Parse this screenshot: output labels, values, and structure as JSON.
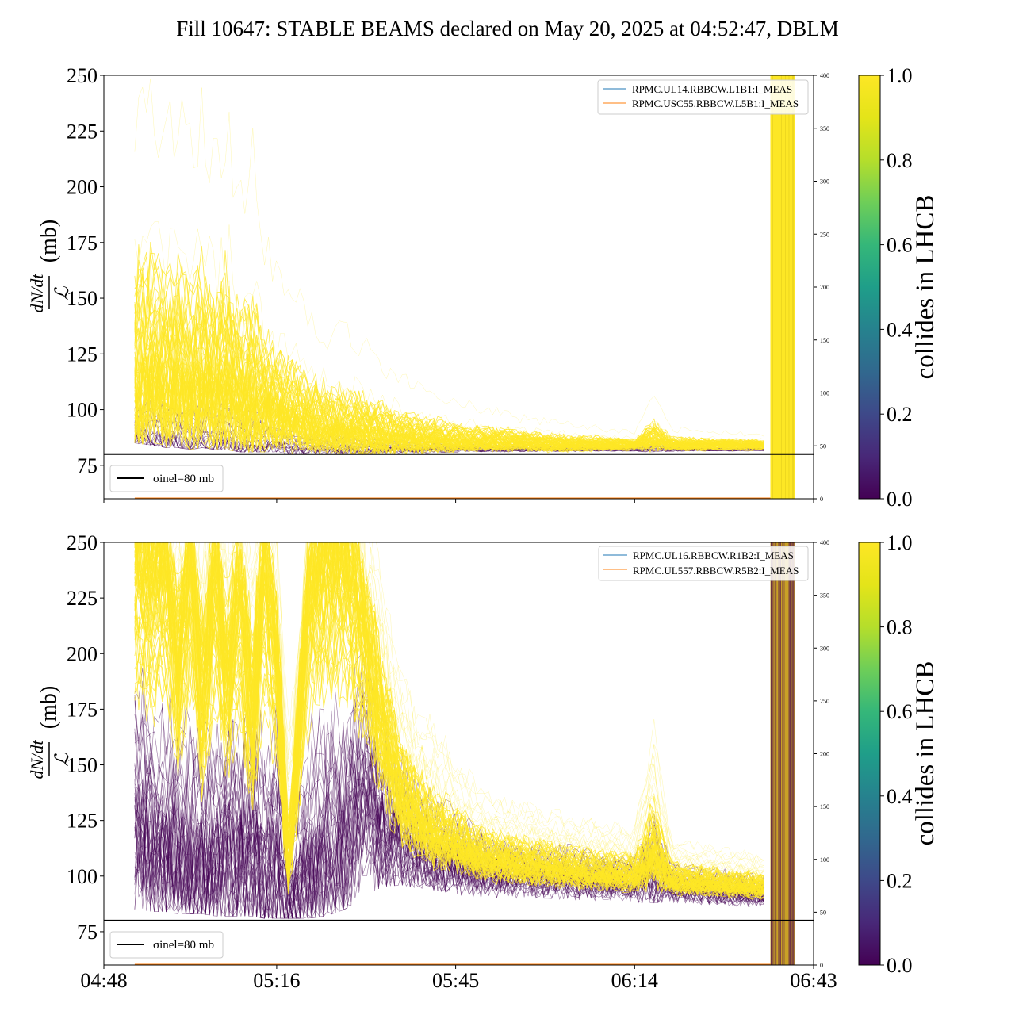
{
  "figure_title": "Fill 10647: STABLE BEAMS declared on May 20, 2025 at 04:52:47, DBLM",
  "colorbar_label": "collides in LHCB",
  "colorbar_ticks": [
    "0.0",
    "0.2",
    "0.4",
    "0.6",
    "0.8",
    "1.0"
  ],
  "colors": {
    "high": "#fde725",
    "low": "#440154",
    "line_blue": "#1f77b4",
    "line_orange": "#ff7f0e",
    "axis": "#000000"
  },
  "chart_data": [
    {
      "type": "line",
      "panel": "top",
      "ylabel_numerator": "dN/dt",
      "ylabel_denominator": "ℒ",
      "ylabel_unit": "(mb)",
      "ylim": [
        60,
        250
      ],
      "yticks": [
        75,
        100,
        125,
        150,
        175,
        200,
        225,
        250
      ],
      "ylim_right": [
        0,
        400
      ],
      "yticks_right": [
        0,
        50,
        100,
        150,
        200,
        250,
        300,
        350,
        400
      ],
      "xlim": [
        "04:48",
        "06:43"
      ],
      "xticks": [
        "04:48",
        "05:16",
        "05:45",
        "06:14",
        "06:43"
      ],
      "xtick_labels_visible": false,
      "reference_line": {
        "y": 80,
        "label": "σinel=80 mb"
      },
      "legend": [
        "RPMC.UL14.RBBCW.L1B1:I_MEAS",
        "RPMC.USC55.RBBCW.L5B1:I_MEAS"
      ],
      "legend_position": "top-right",
      "dump_band": {
        "start": "06:36",
        "end": "06:40"
      },
      "envelope": {
        "x": [
          "04:53",
          "04:56",
          "04:58",
          "05:00",
          "05:02",
          "05:04",
          "05:06",
          "05:08",
          "05:10",
          "05:12",
          "05:14",
          "05:16",
          "05:18",
          "05:21",
          "05:24",
          "05:27",
          "05:30",
          "05:33",
          "05:36",
          "05:40",
          "05:45",
          "05:50",
          "05:55",
          "06:00",
          "06:05",
          "06:10",
          "06:14",
          "06:17",
          "06:20",
          "06:25",
          "06:30",
          "06:35"
        ],
        "median": [
          105,
          112,
          104,
          110,
          102,
          108,
          103,
          106,
          101,
          100,
          98,
          97,
          94,
          92,
          90,
          89,
          88,
          87,
          86,
          86,
          85,
          85,
          85,
          84,
          84,
          84,
          84,
          86,
          84,
          84,
          84,
          84
        ],
        "upper": [
          250,
          250,
          240,
          250,
          230,
          250,
          220,
          250,
          200,
          230,
          180,
          170,
          165,
          150,
          140,
          140,
          135,
          125,
          118,
          112,
          106,
          102,
          98,
          96,
          94,
          92,
          90,
          108,
          92,
          91,
          90,
          89
        ],
        "lower": [
          85,
          84,
          83,
          83,
          82,
          83,
          82,
          82,
          81,
          81,
          81,
          81,
          80,
          80,
          80,
          80,
          80,
          80,
          80,
          80,
          80,
          80,
          80,
          80,
          80,
          80,
          80,
          80,
          80,
          80,
          80,
          80
        ]
      }
    },
    {
      "type": "line",
      "panel": "bottom",
      "ylabel_numerator": "dN/dt",
      "ylabel_denominator": "ℒ",
      "ylabel_unit": "(mb)",
      "ylim": [
        60,
        250
      ],
      "yticks": [
        75,
        100,
        125,
        150,
        175,
        200,
        225,
        250
      ],
      "ylim_right": [
        0,
        400
      ],
      "yticks_right": [
        0,
        50,
        100,
        150,
        200,
        250,
        300,
        350,
        400
      ],
      "xlim": [
        "04:48",
        "06:43"
      ],
      "xticks": [
        "04:48",
        "05:16",
        "05:45",
        "06:14",
        "06:43"
      ],
      "xtick_labels_visible": true,
      "reference_line": {
        "y": 80,
        "label": "σinel=80 mb"
      },
      "legend": [
        "RPMC.UL16.RBBCW.R1B2:I_MEAS",
        "RPMC.UL557.RBBCW.R5B2:I_MEAS"
      ],
      "legend_position": "top-right",
      "dump_band": {
        "start": "06:36",
        "end": "06:40"
      },
      "envelope": {
        "x": [
          "04:53",
          "04:56",
          "04:58",
          "05:00",
          "05:02",
          "05:04",
          "05:06",
          "05:08",
          "05:10",
          "05:12",
          "05:14",
          "05:16",
          "05:18",
          "05:21",
          "05:24",
          "05:27",
          "05:30",
          "05:33",
          "05:36",
          "05:38",
          "05:41",
          "05:45",
          "05:48",
          "05:50",
          "05:55",
          "06:00",
          "06:05",
          "06:10",
          "06:14",
          "06:17",
          "06:20",
          "06:25",
          "06:30",
          "06:35"
        ],
        "median": [
          250,
          240,
          250,
          200,
          250,
          180,
          250,
          190,
          240,
          170,
          250,
          200,
          100,
          230,
          250,
          250,
          220,
          170,
          140,
          130,
          120,
          115,
          110,
          108,
          106,
          104,
          102,
          101,
          100,
          110,
          98,
          97,
          96,
          95
        ],
        "upper": [
          250,
          250,
          250,
          250,
          250,
          250,
          250,
          250,
          250,
          250,
          250,
          250,
          160,
          250,
          250,
          250,
          250,
          230,
          190,
          175,
          165,
          150,
          140,
          135,
          130,
          128,
          124,
          122,
          120,
          165,
          115,
          112,
          110,
          108
        ],
        "lower": [
          85,
          84,
          84,
          83,
          83,
          83,
          82,
          82,
          82,
          82,
          81,
          81,
          81,
          81,
          82,
          85,
          90,
          95,
          96,
          95,
          94,
          92,
          90,
          90,
          90,
          90,
          89,
          89,
          88,
          88,
          88,
          87,
          86,
          86
        ],
        "low_collide_median": [
          130,
          120,
          110,
          118,
          105,
          112,
          102,
          120,
          108,
          120,
          100,
          110,
          88,
          100,
          115,
          120,
          150,
          125,
          120,
          115,
          110,
          108,
          105,
          104,
          102,
          101,
          100,
          99,
          98,
          104,
          96,
          95,
          94,
          93
        ]
      }
    }
  ]
}
